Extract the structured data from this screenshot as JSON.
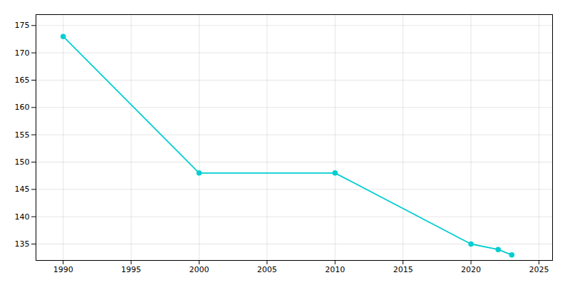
{
  "chart_data": {
    "type": "line",
    "x": [
      1990,
      2000,
      2010,
      2020,
      2022,
      2023
    ],
    "values": [
      173,
      148,
      148,
      135,
      134,
      133
    ],
    "color": "#00CED1",
    "marker": "circle",
    "xlim": [
      1988,
      2026
    ],
    "ylim": [
      132,
      177
    ],
    "xticks": [
      1990,
      1995,
      2000,
      2005,
      2010,
      2015,
      2020,
      2025
    ],
    "yticks": [
      135,
      140,
      145,
      150,
      155,
      160,
      165,
      170,
      175
    ],
    "grid": true
  }
}
